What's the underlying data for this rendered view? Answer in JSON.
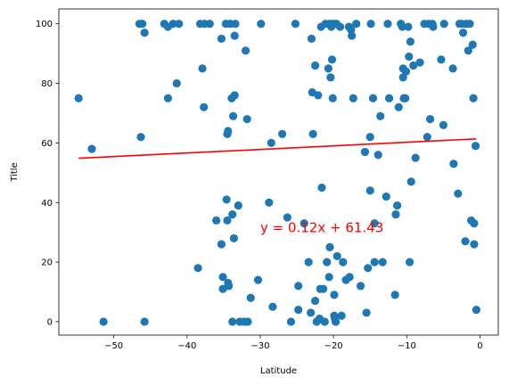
{
  "chart_data": {
    "type": "scatter",
    "title": "",
    "xlabel": "Latitude",
    "ylabel": "Title",
    "xlim": [
      -57.5,
      2.5
    ],
    "ylim": [
      -4.5,
      105
    ],
    "xticks": [
      -50,
      -40,
      -30,
      -20,
      -10,
      0
    ],
    "yticks": [
      0,
      20,
      40,
      60,
      80,
      100
    ],
    "grid": false,
    "marker_color": "#1f77b4",
    "line_color": "#ff0000",
    "annotation": {
      "text": "y = 0.12x + 61.43",
      "x": -30,
      "y": 30,
      "color": "#ff0000"
    },
    "regression": {
      "slope": 0.12,
      "intercept": 61.43,
      "x_range": [
        -54.8,
        -0.5
      ]
    },
    "points": [
      [
        -54.8,
        75
      ],
      [
        -53.0,
        58
      ],
      [
        -51.4,
        0
      ],
      [
        -46.5,
        100
      ],
      [
        -46.1,
        100
      ],
      [
        -46.3,
        62
      ],
      [
        -45.8,
        97
      ],
      [
        -45.8,
        0
      ],
      [
        -43.1,
        100
      ],
      [
        -42.6,
        99
      ],
      [
        -42.6,
        75
      ],
      [
        -41.9,
        100
      ],
      [
        -41.4,
        80
      ],
      [
        -41.1,
        100
      ],
      [
        -38.5,
        18
      ],
      [
        -38.2,
        100
      ],
      [
        -37.9,
        85
      ],
      [
        -37.7,
        72
      ],
      [
        -37.6,
        100
      ],
      [
        -36.9,
        100
      ],
      [
        -36.0,
        34
      ],
      [
        -35.3,
        95
      ],
      [
        -35.3,
        26
      ],
      [
        -35.1,
        15
      ],
      [
        -35.1,
        11
      ],
      [
        -34.7,
        100
      ],
      [
        -34.6,
        41
      ],
      [
        -34.5,
        34
      ],
      [
        -34.5,
        63
      ],
      [
        -34.4,
        64
      ],
      [
        -34.4,
        13
      ],
      [
        -34.3,
        12
      ],
      [
        -34.1,
        100
      ],
      [
        -33.9,
        75
      ],
      [
        -33.8,
        36
      ],
      [
        -33.8,
        0
      ],
      [
        -33.7,
        69
      ],
      [
        -33.6,
        28
      ],
      [
        -33.5,
        76
      ],
      [
        -33.5,
        96
      ],
      [
        -33.4,
        100
      ],
      [
        -33.0,
        39
      ],
      [
        -32.8,
        0
      ],
      [
        -32.2,
        0
      ],
      [
        -32.0,
        91
      ],
      [
        -31.8,
        68
      ],
      [
        -31.7,
        0
      ],
      [
        -31.3,
        8
      ],
      [
        -30.3,
        14
      ],
      [
        -29.9,
        100
      ],
      [
        -28.8,
        40
      ],
      [
        -28.5,
        60
      ],
      [
        -28.3,
        5
      ],
      [
        -27.0,
        63
      ],
      [
        -26.3,
        35
      ],
      [
        -25.8,
        0
      ],
      [
        -25.2,
        100
      ],
      [
        -24.8,
        12
      ],
      [
        -24.8,
        4
      ],
      [
        -24.0,
        33
      ],
      [
        -23.4,
        20
      ],
      [
        -23.1,
        3
      ],
      [
        -23.0,
        95
      ],
      [
        -22.9,
        77
      ],
      [
        -22.8,
        63
      ],
      [
        -22.5,
        86
      ],
      [
        -22.5,
        7
      ],
      [
        -22.3,
        0
      ],
      [
        -22.1,
        76
      ],
      [
        -21.9,
        1
      ],
      [
        -21.8,
        11
      ],
      [
        -21.7,
        99
      ],
      [
        -21.6,
        45
      ],
      [
        -21.4,
        11
      ],
      [
        -21.2,
        0
      ],
      [
        -21.1,
        100
      ],
      [
        -20.9,
        20
      ],
      [
        -20.7,
        85
      ],
      [
        -20.6,
        15
      ],
      [
        -20.5,
        25
      ],
      [
        -20.5,
        100
      ],
      [
        -20.4,
        82
      ],
      [
        -20.3,
        99
      ],
      [
        -20.2,
        88
      ],
      [
        -20.1,
        75
      ],
      [
        -20.0,
        100
      ],
      [
        -19.9,
        2
      ],
      [
        -19.9,
        9
      ],
      [
        -19.8,
        1
      ],
      [
        -19.7,
        0
      ],
      [
        -19.6,
        100
      ],
      [
        -19.5,
        22
      ],
      [
        -19.1,
        99
      ],
      [
        -18.9,
        2
      ],
      [
        -18.7,
        20
      ],
      [
        -18.3,
        14
      ],
      [
        -17.9,
        99
      ],
      [
        -17.8,
        15
      ],
      [
        -17.6,
        98
      ],
      [
        -17.5,
        96
      ],
      [
        -17.3,
        75
      ],
      [
        -16.9,
        100
      ],
      [
        -16.3,
        12
      ],
      [
        -15.7,
        57
      ],
      [
        -15.5,
        3
      ],
      [
        -15.3,
        18
      ],
      [
        -15.0,
        62
      ],
      [
        -15.0,
        44
      ],
      [
        -14.9,
        100
      ],
      [
        -14.6,
        75
      ],
      [
        -14.4,
        20
      ],
      [
        -14.4,
        33
      ],
      [
        -13.9,
        56
      ],
      [
        -13.6,
        69
      ],
      [
        -13.3,
        20
      ],
      [
        -12.8,
        42
      ],
      [
        -12.6,
        100
      ],
      [
        -12.4,
        75
      ],
      [
        -11.6,
        9
      ],
      [
        -11.5,
        36
      ],
      [
        -11.3,
        39
      ],
      [
        -11.1,
        72
      ],
      [
        -10.8,
        100
      ],
      [
        -10.6,
        99
      ],
      [
        -10.5,
        82
      ],
      [
        -10.5,
        85
      ],
      [
        -10.4,
        75
      ],
      [
        -10.2,
        75
      ],
      [
        -10.1,
        84
      ],
      [
        -9.8,
        99
      ],
      [
        -9.7,
        89
      ],
      [
        -9.6,
        20
      ],
      [
        -9.5,
        94
      ],
      [
        -9.4,
        47
      ],
      [
        -9.1,
        86
      ],
      [
        -8.8,
        55
      ],
      [
        -8.2,
        87
      ],
      [
        -7.6,
        100
      ],
      [
        -7.2,
        62
      ],
      [
        -7.0,
        100
      ],
      [
        -6.8,
        68
      ],
      [
        -6.5,
        100
      ],
      [
        -6.4,
        99
      ],
      [
        -5.3,
        88
      ],
      [
        -5.0,
        66
      ],
      [
        -4.9,
        100
      ],
      [
        -3.7,
        85
      ],
      [
        -3.6,
        53
      ],
      [
        -3.0,
        43
      ],
      [
        -2.8,
        100
      ],
      [
        -2.5,
        100
      ],
      [
        -2.3,
        97
      ],
      [
        -2.0,
        27
      ],
      [
        -1.9,
        100
      ],
      [
        -1.6,
        91
      ],
      [
        -1.4,
        100
      ],
      [
        -1.2,
        34
      ],
      [
        -1.0,
        93
      ],
      [
        -0.9,
        75
      ],
      [
        -0.8,
        33
      ],
      [
        -0.8,
        26
      ],
      [
        -0.6,
        59
      ],
      [
        -0.5,
        4
      ]
    ]
  }
}
